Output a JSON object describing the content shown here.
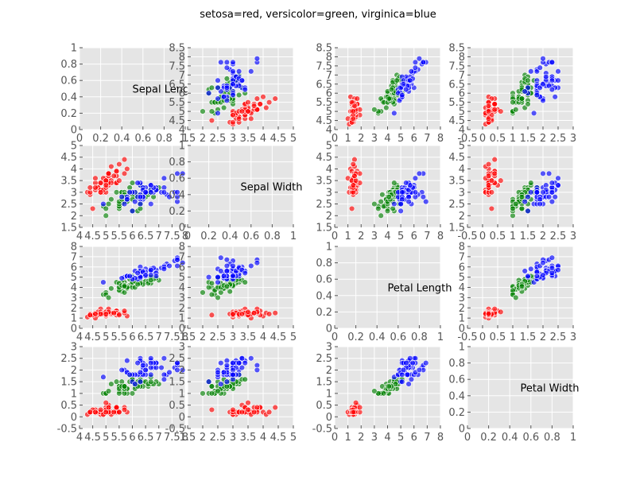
{
  "chart_data": {
    "type": "scatter-matrix",
    "title": "setosa=red, versicolor=green, virginica=blue",
    "variables": [
      "Sepal Length",
      "Sepal Width",
      "Petal Length",
      "Petal Width"
    ],
    "colors": {
      "setosa": "#ff0000",
      "versicolor": "#008000",
      "virginica": "#0000ff"
    },
    "panel_bg": "#e5e5e5",
    "axes": {
      "col_x": [
        {
          "lim": [
            4.0,
            8.0
          ],
          "ticks": [
            4.0,
            4.5,
            5.0,
            5.5,
            6.0,
            6.5,
            7.0,
            7.5,
            8.0
          ]
        },
        {
          "lim": [
            1.5,
            5.0
          ],
          "ticks": [
            1.5,
            2.0,
            2.5,
            3.0,
            3.5,
            4.0,
            4.5,
            5.0
          ]
        },
        {
          "lim": [
            0,
            8
          ],
          "ticks": [
            0,
            1,
            2,
            3,
            4,
            5,
            6,
            7,
            8
          ]
        },
        {
          "lim": [
            -0.5,
            3.0
          ],
          "ticks": [
            -0.5,
            0.0,
            0.5,
            1.0,
            1.5,
            2.0,
            2.5,
            3.0
          ]
        }
      ],
      "row_y": [
        {
          "lim": [
            4.0,
            8.5
          ],
          "ticks": [
            4.0,
            4.5,
            5.0,
            5.5,
            6.0,
            6.5,
            7.0,
            7.5,
            8.0,
            8.5
          ]
        },
        {
          "lim": [
            1.5,
            5.0
          ],
          "ticks": [
            1.5,
            2.0,
            2.5,
            3.0,
            3.5,
            4.0,
            4.5,
            5.0
          ]
        },
        {
          "lim": [
            0,
            8
          ],
          "ticks": [
            0,
            1,
            2,
            3,
            4,
            5,
            6,
            7,
            8
          ]
        },
        {
          "lim": [
            -0.5,
            3.0
          ],
          "ticks": [
            -0.5,
            0.0,
            0.5,
            1.0,
            1.5,
            2.0,
            2.5,
            3.0
          ]
        }
      ],
      "diag": {
        "lim": [
          0.0,
          1.0
        ],
        "ticks": [
          0.0,
          0.2,
          0.4,
          0.6,
          0.8,
          1.0
        ]
      }
    },
    "species": [
      {
        "name": "setosa",
        "points": [
          [
            5.1,
            3.5,
            1.4,
            0.2
          ],
          [
            4.9,
            3.0,
            1.4,
            0.2
          ],
          [
            4.7,
            3.2,
            1.3,
            0.2
          ],
          [
            4.6,
            3.1,
            1.5,
            0.2
          ],
          [
            5.0,
            3.6,
            1.4,
            0.2
          ],
          [
            5.4,
            3.9,
            1.7,
            0.4
          ],
          [
            4.6,
            3.4,
            1.4,
            0.3
          ],
          [
            5.0,
            3.4,
            1.5,
            0.2
          ],
          [
            4.4,
            2.9,
            1.4,
            0.2
          ],
          [
            4.9,
            3.1,
            1.5,
            0.1
          ],
          [
            5.4,
            3.7,
            1.5,
            0.2
          ],
          [
            4.8,
            3.4,
            1.6,
            0.2
          ],
          [
            4.8,
            3.0,
            1.4,
            0.1
          ],
          [
            4.3,
            3.0,
            1.1,
            0.1
          ],
          [
            5.8,
            4.0,
            1.2,
            0.2
          ],
          [
            5.7,
            4.4,
            1.5,
            0.4
          ],
          [
            5.4,
            3.9,
            1.3,
            0.4
          ],
          [
            5.1,
            3.5,
            1.4,
            0.3
          ],
          [
            5.7,
            3.8,
            1.7,
            0.3
          ],
          [
            5.1,
            3.8,
            1.5,
            0.3
          ],
          [
            5.4,
            3.4,
            1.7,
            0.2
          ],
          [
            5.1,
            3.7,
            1.5,
            0.4
          ],
          [
            4.6,
            3.6,
            1.0,
            0.2
          ],
          [
            5.1,
            3.3,
            1.7,
            0.5
          ],
          [
            4.8,
            3.4,
            1.9,
            0.2
          ],
          [
            5.0,
            3.0,
            1.6,
            0.2
          ],
          [
            5.0,
            3.4,
            1.6,
            0.4
          ],
          [
            5.2,
            3.5,
            1.5,
            0.2
          ],
          [
            5.2,
            3.4,
            1.4,
            0.2
          ],
          [
            4.7,
            3.2,
            1.6,
            0.2
          ],
          [
            4.8,
            3.1,
            1.6,
            0.2
          ],
          [
            5.4,
            3.4,
            1.5,
            0.4
          ],
          [
            5.2,
            4.1,
            1.5,
            0.1
          ],
          [
            5.5,
            4.2,
            1.4,
            0.2
          ],
          [
            4.9,
            3.1,
            1.5,
            0.2
          ],
          [
            5.0,
            3.2,
            1.2,
            0.2
          ],
          [
            5.5,
            3.5,
            1.3,
            0.2
          ],
          [
            4.9,
            3.6,
            1.4,
            0.1
          ],
          [
            4.4,
            3.0,
            1.3,
            0.2
          ],
          [
            5.1,
            3.4,
            1.5,
            0.2
          ],
          [
            5.0,
            3.5,
            1.3,
            0.3
          ],
          [
            4.5,
            2.3,
            1.3,
            0.3
          ],
          [
            4.4,
            3.2,
            1.3,
            0.2
          ],
          [
            5.0,
            3.5,
            1.6,
            0.6
          ],
          [
            5.1,
            3.8,
            1.9,
            0.4
          ],
          [
            4.8,
            3.0,
            1.4,
            0.3
          ],
          [
            5.1,
            3.8,
            1.6,
            0.2
          ],
          [
            4.6,
            3.2,
            1.4,
            0.2
          ],
          [
            5.3,
            3.7,
            1.5,
            0.2
          ],
          [
            5.0,
            3.3,
            1.4,
            0.2
          ]
        ]
      },
      {
        "name": "versicolor",
        "points": [
          [
            7.0,
            3.2,
            4.7,
            1.4
          ],
          [
            6.4,
            3.2,
            4.5,
            1.5
          ],
          [
            6.9,
            3.1,
            4.9,
            1.5
          ],
          [
            5.5,
            2.3,
            4.0,
            1.3
          ],
          [
            6.5,
            2.8,
            4.6,
            1.5
          ],
          [
            5.7,
            2.8,
            4.5,
            1.3
          ],
          [
            6.3,
            3.3,
            4.7,
            1.6
          ],
          [
            4.9,
            2.4,
            3.3,
            1.0
          ],
          [
            6.6,
            2.9,
            4.6,
            1.3
          ],
          [
            5.2,
            2.7,
            3.9,
            1.4
          ],
          [
            5.0,
            2.0,
            3.5,
            1.0
          ],
          [
            5.9,
            3.0,
            4.2,
            1.5
          ],
          [
            6.0,
            2.2,
            4.0,
            1.0
          ],
          [
            6.1,
            2.9,
            4.7,
            1.4
          ],
          [
            5.6,
            2.9,
            3.6,
            1.3
          ],
          [
            6.7,
            3.1,
            4.4,
            1.4
          ],
          [
            5.6,
            3.0,
            4.5,
            1.5
          ],
          [
            5.8,
            2.7,
            4.1,
            1.0
          ],
          [
            6.2,
            2.2,
            4.5,
            1.5
          ],
          [
            5.6,
            2.5,
            3.9,
            1.1
          ],
          [
            5.9,
            3.2,
            4.8,
            1.8
          ],
          [
            6.1,
            2.8,
            4.0,
            1.3
          ],
          [
            6.3,
            2.5,
            4.9,
            1.5
          ],
          [
            6.1,
            2.8,
            4.7,
            1.2
          ],
          [
            6.4,
            2.9,
            4.3,
            1.3
          ],
          [
            6.6,
            3.0,
            4.4,
            1.4
          ],
          [
            6.8,
            2.8,
            4.8,
            1.4
          ],
          [
            6.7,
            3.0,
            5.0,
            1.7
          ],
          [
            6.0,
            2.9,
            4.5,
            1.5
          ],
          [
            5.7,
            2.6,
            3.5,
            1.0
          ],
          [
            5.5,
            2.4,
            3.8,
            1.1
          ],
          [
            5.5,
            2.4,
            3.7,
            1.0
          ],
          [
            5.8,
            2.7,
            3.9,
            1.2
          ],
          [
            6.0,
            2.7,
            5.1,
            1.6
          ],
          [
            5.4,
            3.0,
            4.5,
            1.5
          ],
          [
            6.0,
            3.4,
            4.5,
            1.6
          ],
          [
            6.7,
            3.1,
            4.7,
            1.5
          ],
          [
            6.3,
            2.3,
            4.4,
            1.3
          ],
          [
            5.6,
            3.0,
            4.1,
            1.3
          ],
          [
            5.5,
            2.5,
            4.0,
            1.3
          ],
          [
            5.5,
            2.6,
            4.4,
            1.2
          ],
          [
            6.1,
            3.0,
            4.6,
            1.4
          ],
          [
            5.8,
            2.6,
            4.0,
            1.2
          ],
          [
            5.0,
            2.3,
            3.3,
            1.0
          ],
          [
            5.6,
            2.7,
            4.2,
            1.3
          ],
          [
            5.7,
            3.0,
            4.2,
            1.2
          ],
          [
            5.7,
            2.9,
            4.2,
            1.3
          ],
          [
            6.2,
            2.9,
            4.3,
            1.3
          ],
          [
            5.1,
            2.5,
            3.0,
            1.1
          ],
          [
            5.7,
            2.8,
            4.1,
            1.3
          ]
        ]
      },
      {
        "name": "virginica",
        "points": [
          [
            6.3,
            3.3,
            6.0,
            2.5
          ],
          [
            5.8,
            2.7,
            5.1,
            1.9
          ],
          [
            7.1,
            3.0,
            5.9,
            2.1
          ],
          [
            6.3,
            2.9,
            5.6,
            1.8
          ],
          [
            6.5,
            3.0,
            5.8,
            2.2
          ],
          [
            7.6,
            3.0,
            6.6,
            2.1
          ],
          [
            4.9,
            2.5,
            4.5,
            1.7
          ],
          [
            7.3,
            2.9,
            6.3,
            1.8
          ],
          [
            6.7,
            2.5,
            5.8,
            1.8
          ],
          [
            7.2,
            3.6,
            6.1,
            2.5
          ],
          [
            6.5,
            3.2,
            5.1,
            2.0
          ],
          [
            6.4,
            2.7,
            5.3,
            1.9
          ],
          [
            6.8,
            3.0,
            5.5,
            2.1
          ],
          [
            5.7,
            2.5,
            5.0,
            2.0
          ],
          [
            5.8,
            2.8,
            5.1,
            2.4
          ],
          [
            6.4,
            3.2,
            5.3,
            2.3
          ],
          [
            6.5,
            3.0,
            5.5,
            1.8
          ],
          [
            7.7,
            3.8,
            6.7,
            2.2
          ],
          [
            7.7,
            2.6,
            6.9,
            2.3
          ],
          [
            6.0,
            2.2,
            5.0,
            1.5
          ],
          [
            6.9,
            3.2,
            5.7,
            2.3
          ],
          [
            5.6,
            2.8,
            4.9,
            2.0
          ],
          [
            7.7,
            2.8,
            6.7,
            2.0
          ],
          [
            6.3,
            2.7,
            4.9,
            1.8
          ],
          [
            6.7,
            3.3,
            5.7,
            2.1
          ],
          [
            7.2,
            3.2,
            6.0,
            1.8
          ],
          [
            6.2,
            2.8,
            4.8,
            1.8
          ],
          [
            6.1,
            3.0,
            4.9,
            1.8
          ],
          [
            6.4,
            2.8,
            5.6,
            2.1
          ],
          [
            7.2,
            3.0,
            5.8,
            1.6
          ],
          [
            7.4,
            2.8,
            6.1,
            1.9
          ],
          [
            7.9,
            3.8,
            6.4,
            2.0
          ],
          [
            6.4,
            2.8,
            5.6,
            2.2
          ],
          [
            6.3,
            2.8,
            5.1,
            1.5
          ],
          [
            6.1,
            2.6,
            5.6,
            1.4
          ],
          [
            7.7,
            3.0,
            6.1,
            2.3
          ],
          [
            6.3,
            3.4,
            5.6,
            2.4
          ],
          [
            6.4,
            3.1,
            5.5,
            1.8
          ],
          [
            6.0,
            3.0,
            4.8,
            1.8
          ],
          [
            6.9,
            3.1,
            5.4,
            2.1
          ],
          [
            6.7,
            3.1,
            5.6,
            2.4
          ],
          [
            6.9,
            3.1,
            5.1,
            2.3
          ],
          [
            5.8,
            2.7,
            5.1,
            1.9
          ],
          [
            6.8,
            3.2,
            5.9,
            2.3
          ],
          [
            6.7,
            3.3,
            5.7,
            2.5
          ],
          [
            6.7,
            3.0,
            5.2,
            2.3
          ],
          [
            6.3,
            2.5,
            5.0,
            1.9
          ],
          [
            6.5,
            3.0,
            5.2,
            2.0
          ],
          [
            6.2,
            3.4,
            5.4,
            2.3
          ],
          [
            5.9,
            3.0,
            5.1,
            1.8
          ]
        ]
      }
    ]
  }
}
